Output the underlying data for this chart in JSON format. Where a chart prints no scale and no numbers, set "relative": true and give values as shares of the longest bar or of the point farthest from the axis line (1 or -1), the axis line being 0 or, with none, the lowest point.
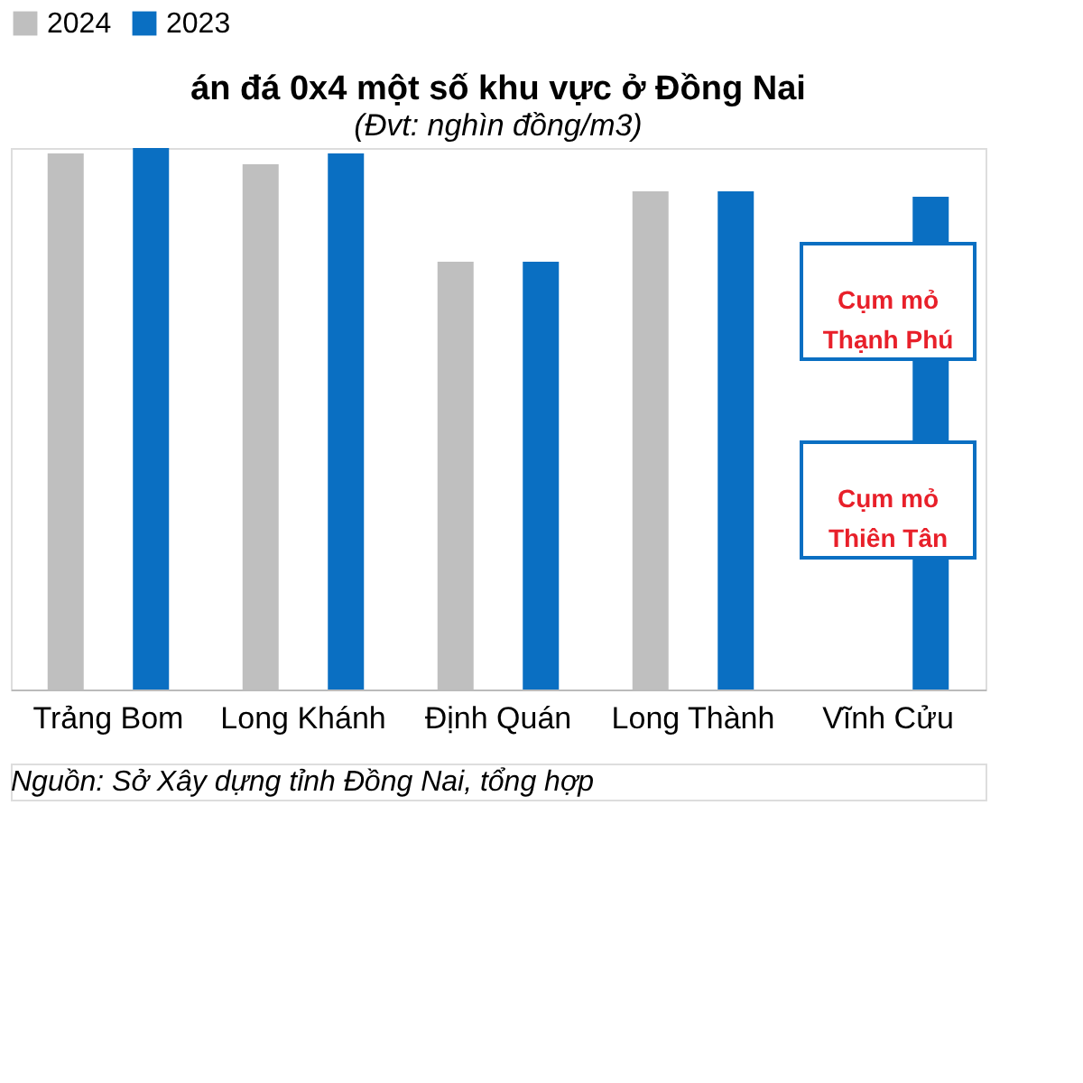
{
  "chart_data": {
    "type": "bar",
    "title": "án đá 0x4 một số khu vực ở Đồng Nai",
    "subtitle": "(Đvt: nghìn đồng/m3)",
    "categories": [
      "Trảng Bom",
      "Long Khánh",
      "Định Quán",
      "Long Thành",
      "Vĩnh Cửu"
    ],
    "relative": true,
    "legend": "top",
    "grid": false,
    "series": [
      {
        "name": "2024",
        "color": "#bfbfbf",
        "values": [
          0.99,
          0.97,
          0.79,
          0.92,
          null
        ]
      },
      {
        "name": "2023",
        "color": "#0a6fc2",
        "values": [
          1.0,
          0.99,
          0.79,
          0.92,
          0.91
        ]
      }
    ],
    "annotations": [
      "Cụm mỏ\nThạnh Phú",
      "Cụm mỏ\nThiên Tân",
      "Nguồn: Sở Xây dựng tỉnh Đồng Nai, tổng hợp"
    ]
  }
}
